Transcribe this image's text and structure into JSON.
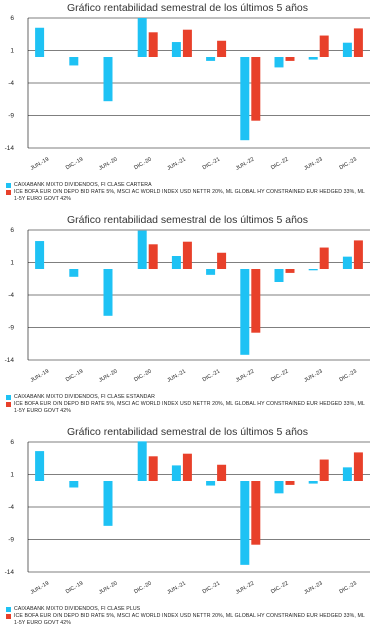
{
  "colors": {
    "series1": "#1ec2f4",
    "series2": "#e8402a",
    "grid": "#000000"
  },
  "chart_data": [
    {
      "type": "bar",
      "title": "Gráfico rentabilidad semestral de los últimos 5 años",
      "categories": [
        "JUN.-19",
        "DIC.-19",
        "JUN.-20",
        "DIC.-20",
        "JUN.-21",
        "DIC.-21",
        "JUN.-22",
        "DIC.-22",
        "JUN.-23",
        "DIC.-23"
      ],
      "yticks": [
        "6",
        "1",
        "-4",
        "-9",
        "-14"
      ],
      "ylim": [
        -14,
        6
      ],
      "grid": true,
      "legend_position": "bottom-left",
      "series": [
        {
          "name": "CAIXABANK MIXTO DIVIDENDOS, FI CLASE CARTERA",
          "values": [
            4.5,
            -1.3,
            -6.8,
            6.0,
            2.3,
            -0.6,
            -12.8,
            -1.6,
            -0.4,
            2.2
          ]
        },
        {
          "name": "ICE BOFA EUR O/N DEPO BID RATE 5%, MSCI AC WORLD INDEX USD NETTR 20%, ML GLOBAL HY CONSTRAINED EUR HEDGED 33%, ML 1-5Y EURO GOVT 42%",
          "values": [
            null,
            null,
            null,
            3.8,
            4.2,
            2.5,
            -9.8,
            -0.6,
            3.3,
            4.4
          ]
        }
      ]
    },
    {
      "type": "bar",
      "title": "Gráfico rentabilidad semestral de los últimos 5 años",
      "categories": [
        "JUN.-19",
        "DIC.-19",
        "JUN.-20",
        "DIC.-20",
        "JUN.-21",
        "DIC.-21",
        "JUN.-22",
        "DIC.-22",
        "JUN.-23",
        "DIC.-23"
      ],
      "yticks": [
        "6",
        "1",
        "-4",
        "-9",
        "-14"
      ],
      "ylim": [
        -14,
        6
      ],
      "grid": true,
      "legend_position": "bottom-left",
      "series": [
        {
          "name": "CAIXABANK MIXTO DIVIDENDOS, FI CLASE ESTANDAR",
          "values": [
            4.3,
            -1.2,
            -7.2,
            5.9,
            2.0,
            -0.9,
            -13.2,
            -2.0,
            -0.2,
            1.9
          ]
        },
        {
          "name": "ICE BOFA EUR O/N DEPO BID RATE 5%, MSCI AC WORLD INDEX USD NETTR 20%, ML GLOBAL HY CONSTRAINED EUR HEDGED 33%, ML 1-5Y EURO GOVT 42%",
          "values": [
            null,
            null,
            null,
            3.8,
            4.2,
            2.5,
            -9.8,
            -0.6,
            3.3,
            4.4
          ]
        }
      ]
    },
    {
      "type": "bar",
      "title": "Gráfico rentabilidad semestral de los últimos 5 años",
      "categories": [
        "JUN.-19",
        "DIC.-19",
        "JUN.-20",
        "DIC.-20",
        "JUN.-21",
        "DIC.-21",
        "JUN.-22",
        "DIC.-22",
        "JUN.-23",
        "DIC.-23"
      ],
      "yticks": [
        "6",
        "1",
        "-4",
        "-9",
        "-14"
      ],
      "ylim": [
        -14,
        6
      ],
      "grid": true,
      "legend_position": "bottom-left",
      "series": [
        {
          "name": "CAIXABANK MIXTO DIVIDENDOS, FI CLASE PLUS",
          "values": [
            4.6,
            -1.0,
            -6.9,
            6.1,
            2.4,
            -0.7,
            -12.9,
            -1.9,
            -0.4,
            2.1
          ]
        },
        {
          "name": "ICE BOFA EUR O/N DEPO BID RATE 5%, MSCI AC WORLD INDEX USD NETTR 20%, ML GLOBAL HY CONSTRAINED EUR HEDGED 33%, ML 1-5Y EURO GOVT 42%",
          "values": [
            null,
            null,
            null,
            3.8,
            4.2,
            2.5,
            -9.8,
            -0.6,
            3.3,
            4.4
          ]
        }
      ]
    }
  ]
}
